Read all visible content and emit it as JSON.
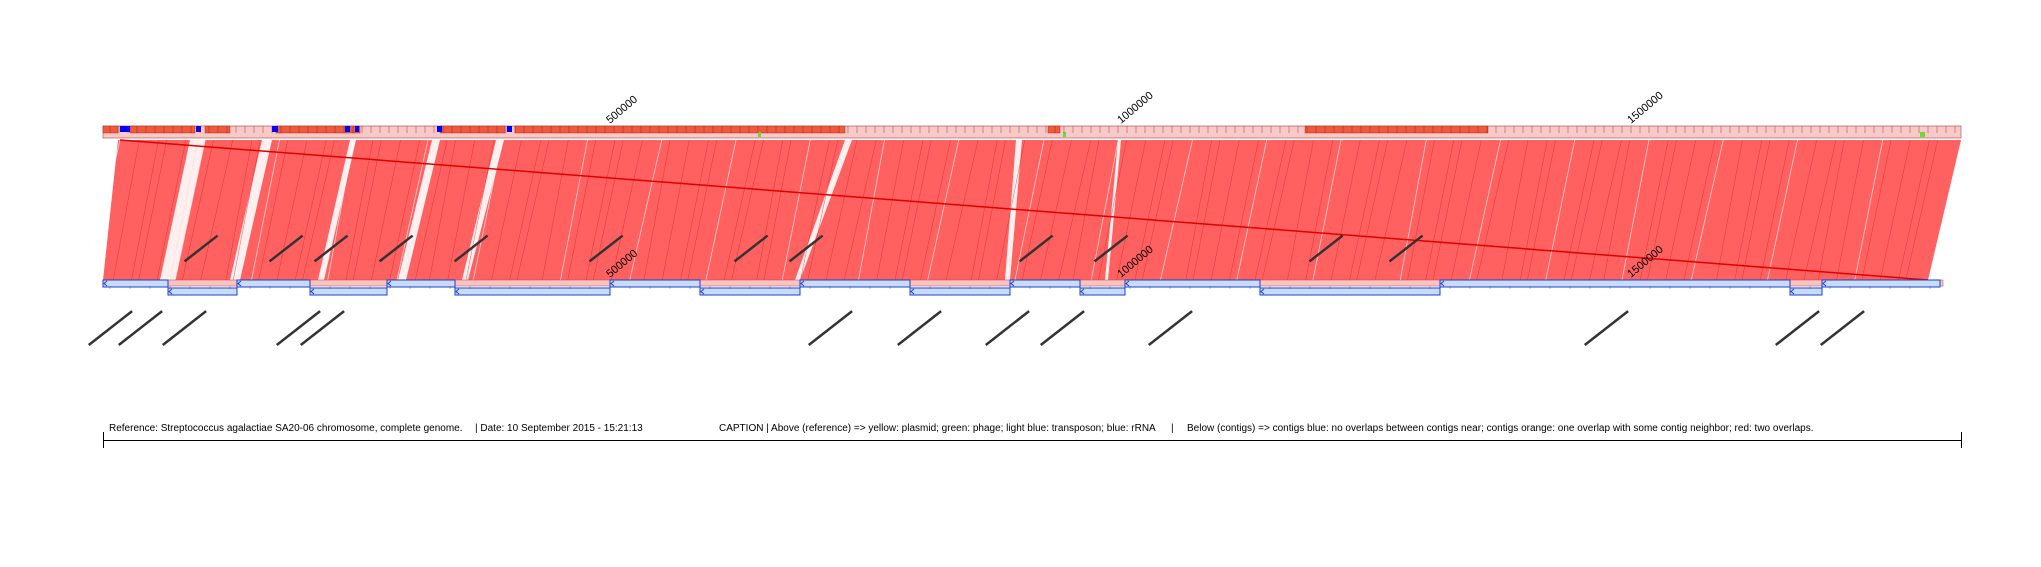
{
  "reference": {
    "ticks": [
      "500000",
      "1000000",
      "1500000"
    ],
    "colors": {
      "track_light": "#f9c9c9",
      "track_dark": "#f05a3c",
      "rrna": "#0000ff",
      "phage": "#66dd33"
    }
  },
  "contigs": {
    "ticks": [
      "500000",
      "1000000",
      "1500000"
    ],
    "colors": {
      "box_fill": "#c9dcf5",
      "box_stroke": "#1a3fd6"
    }
  },
  "alignment": {
    "fill": "#ff4a4a",
    "line": "#e00000"
  },
  "caption": {
    "reference": "Reference: Streptococcus agalactiae SA20-06 chromosome, complete genome.",
    "date": "|  Date: 10 September 2015 - 15:21:13",
    "caption": "CAPTION | Above (reference) => yellow: plasmid; green: phage; light blue: transposon; blue: rRNA",
    "separator": "|",
    "below": "Below (contigs) => contigs blue: no overlaps between contigs near; contigs orange: one overlap with some contig neighbor; red: two overlaps."
  }
}
